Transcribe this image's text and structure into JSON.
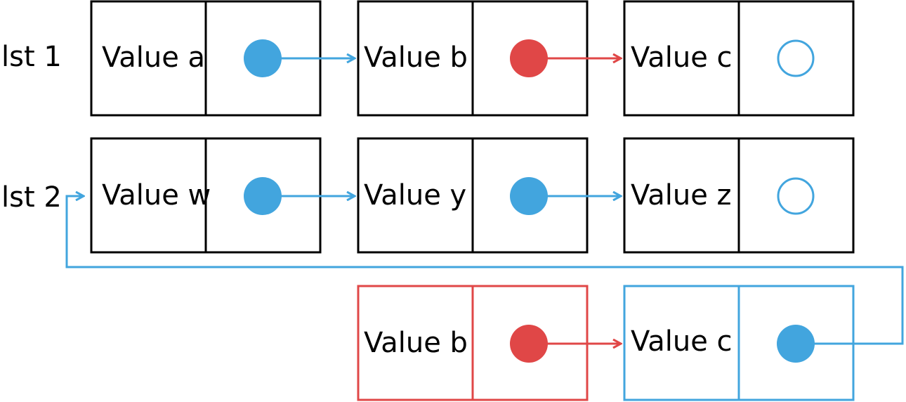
{
  "colors": {
    "black": "#000000",
    "blue": "#42a5de",
    "red": "#e04747"
  },
  "rows": [
    {
      "label": "lst 1",
      "nodes": [
        {
          "value": "Value a",
          "border": "black",
          "pointer": "filled",
          "pointer_color": "blue"
        },
        {
          "value": "Value b",
          "border": "black",
          "pointer": "filled",
          "pointer_color": "red"
        },
        {
          "value": "Value c",
          "border": "black",
          "pointer": "hollow",
          "pointer_color": "blue"
        }
      ]
    },
    {
      "label": "lst 2",
      "nodes": [
        {
          "value": "Value w",
          "border": "black",
          "pointer": "filled",
          "pointer_color": "blue"
        },
        {
          "value": "Value y",
          "border": "black",
          "pointer": "filled",
          "pointer_color": "blue"
        },
        {
          "value": "Value z",
          "border": "black",
          "pointer": "hollow",
          "pointer_color": "blue"
        }
      ]
    },
    {
      "label": "",
      "nodes": [
        {
          "value": "Value b",
          "border": "red",
          "pointer": "filled",
          "pointer_color": "red"
        },
        {
          "value": "Value c",
          "border": "blue",
          "pointer": "filled",
          "pointer_color": "blue"
        }
      ]
    }
  ]
}
